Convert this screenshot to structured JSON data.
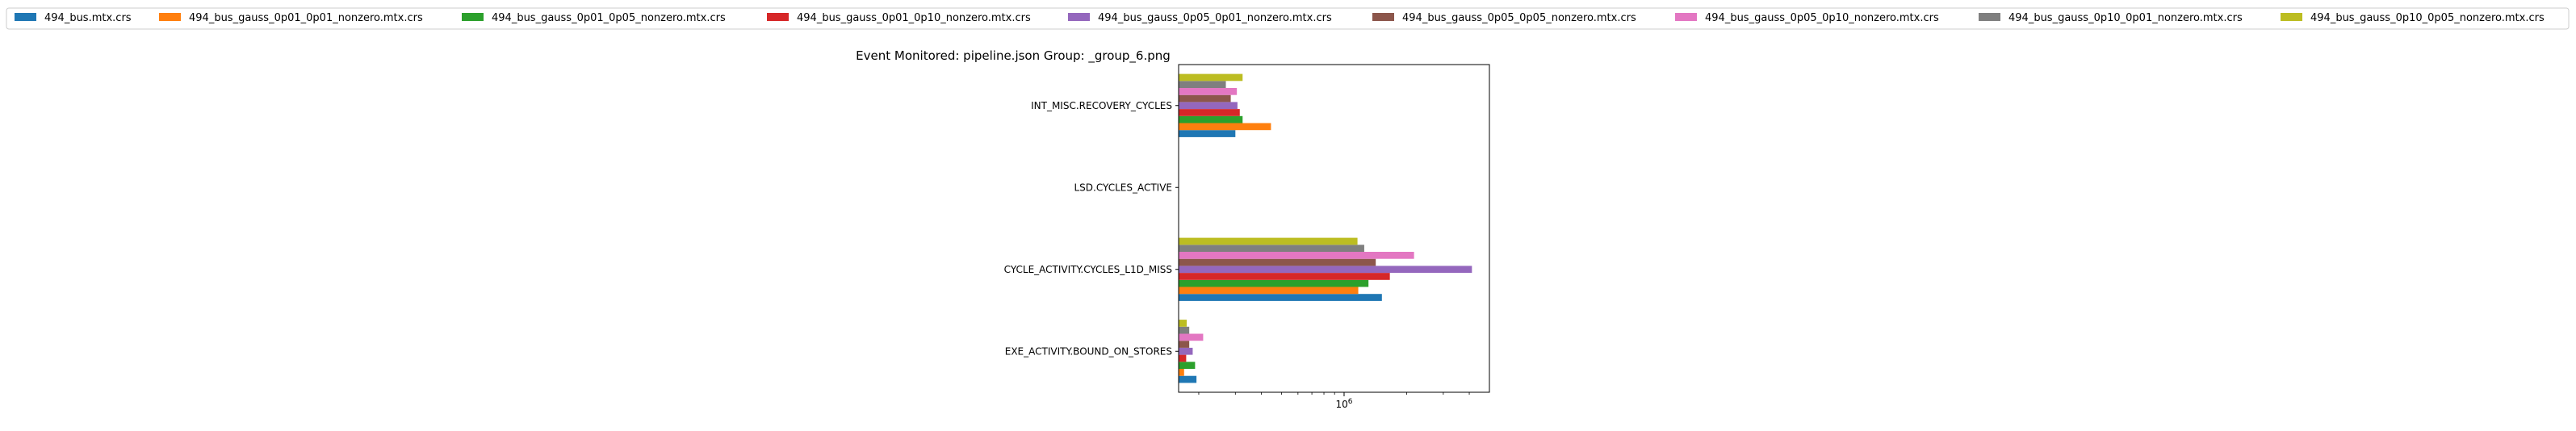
{
  "chart_data": {
    "type": "bar",
    "orientation": "horizontal",
    "title": "Event Monitored: pipeline.json Group: _group_6.png",
    "xlabel": "",
    "ylabel": "",
    "xscale": "log",
    "xlim": [
      160000,
      5000000
    ],
    "xticks": [
      {
        "value": 1000000,
        "label": "10^6"
      }
    ],
    "legend_position": "top",
    "grid": false,
    "categories": [
      "EXE_ACTIVITY.BOUND_ON_STORES",
      "CYCLE_ACTIVITY.CYCLES_L1D_MISS",
      "LSD.CYCLES_ACTIVE",
      "INT_MISC.RECOVERY_CYCLES"
    ],
    "series": [
      {
        "name": "494_bus.mtx.crs",
        "color": "#1f77b4",
        "values": [
          195000,
          1520000,
          0,
          300000
        ]
      },
      {
        "name": "494_bus_gauss_0p01_0p01_nonzero.mtx.crs",
        "color": "#ff7f0e",
        "values": [
          170000,
          1170000,
          0,
          445000
        ]
      },
      {
        "name": "494_bus_gauss_0p01_0p05_nonzero.mtx.crs",
        "color": "#2ca02c",
        "values": [
          192000,
          1310000,
          0,
          325000
        ]
      },
      {
        "name": "494_bus_gauss_0p01_0p10_nonzero.mtx.crs",
        "color": "#d62728",
        "values": [
          174000,
          1660000,
          0,
          315000
        ]
      },
      {
        "name": "494_bus_gauss_0p05_0p01_nonzero.mtx.crs",
        "color": "#9467bd",
        "values": [
          187000,
          4120000,
          0,
          307000
        ]
      },
      {
        "name": "494_bus_gauss_0p05_0p05_nonzero.mtx.crs",
        "color": "#8c564b",
        "values": [
          180000,
          1420000,
          0,
          285000
        ]
      },
      {
        "name": "494_bus_gauss_0p05_0p10_nonzero.mtx.crs",
        "color": "#e377c2",
        "values": [
          210000,
          2170000,
          0,
          305000
        ]
      },
      {
        "name": "494_bus_gauss_0p10_0p01_nonzero.mtx.crs",
        "color": "#7f7f7f",
        "values": [
          180000,
          1250000,
          0,
          270000
        ]
      },
      {
        "name": "494_bus_gauss_0p10_0p05_nonzero.mtx.crs",
        "color": "#bcbd22",
        "values": [
          175000,
          1160000,
          0,
          325000
        ]
      }
    ]
  }
}
